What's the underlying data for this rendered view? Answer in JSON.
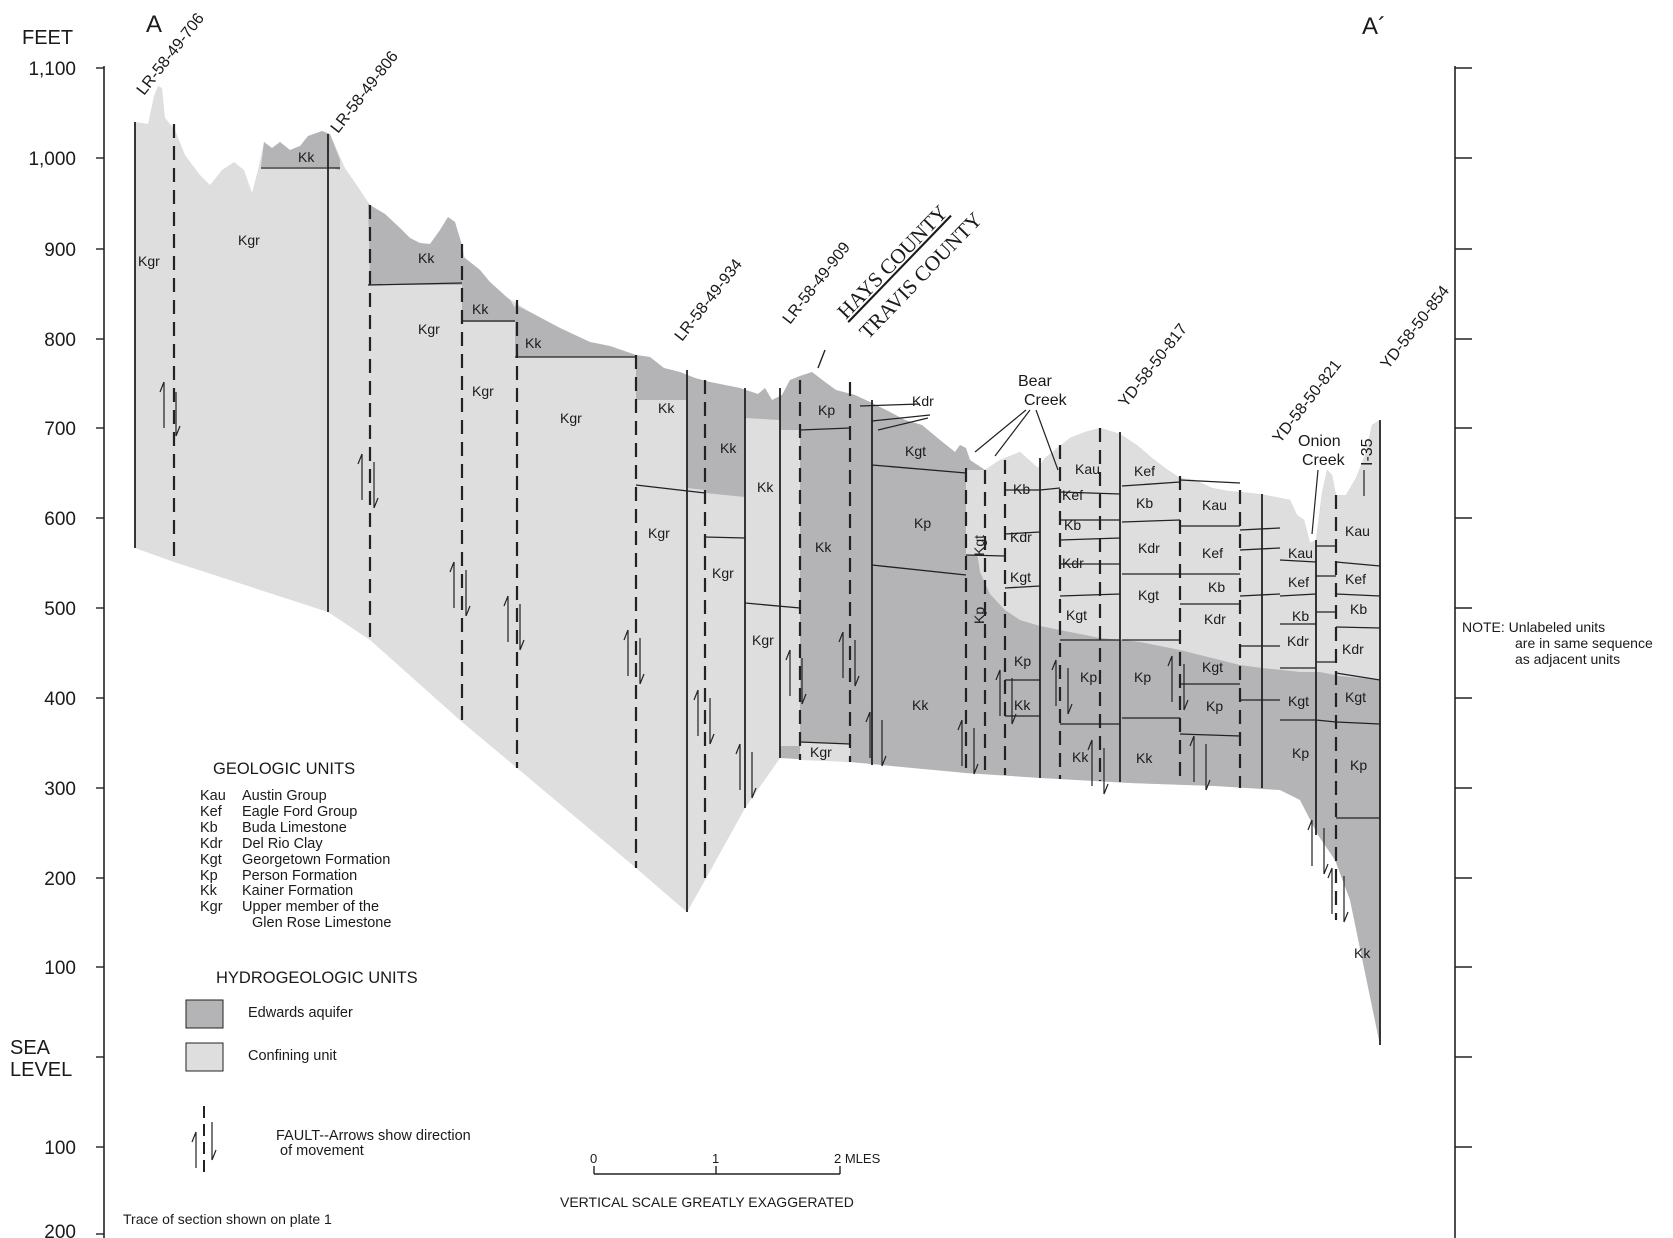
{
  "section_labels": {
    "left": "A",
    "right": "A´"
  },
  "axis": {
    "unit": "FEET",
    "ticks": [
      "1,100",
      "1,000",
      "900",
      "800",
      "700",
      "600",
      "500",
      "400",
      "300",
      "200",
      "100"
    ],
    "sea_level": [
      "SEA",
      "LEVEL"
    ],
    "below": [
      "100",
      "200"
    ]
  },
  "wells": [
    "LR-58-49-706",
    "LR-58-49-806",
    "LR-58-49-934",
    "LR-58-49-909",
    "YD-58-50-817",
    "YD-58-50-821",
    "YD-58-50-854"
  ],
  "county_line": {
    "north": "HAYS  COUNTY",
    "south": "TRAVIS COUNTY"
  },
  "features": {
    "bear_creek": [
      "Bear",
      "Creek"
    ],
    "onion_creek": [
      "Onion",
      "Creek"
    ],
    "highway": "I-35"
  },
  "unit_labels": {
    "kgr": "Kgr",
    "kk": "Kk",
    "kp": "Kp",
    "kgt": "Kgt",
    "kdr": "Kdr",
    "kb": "Kb",
    "kef": "Kef",
    "kau": "Kau"
  },
  "note": [
    "NOTE: Unlabeled units",
    "are in same sequence",
    "as adjacent units"
  ],
  "legend": {
    "geologic_title": "GEOLOGIC UNITS",
    "geologic_units": [
      {
        "code": "Kau",
        "name": "Austin Group"
      },
      {
        "code": "Kef",
        "name": "Eagle Ford Group"
      },
      {
        "code": "Kb",
        "name": "Buda Limestone"
      },
      {
        "code": "Kdr",
        "name": "Del Rio Clay"
      },
      {
        "code": "Kgt",
        "name": "Georgetown Formation"
      },
      {
        "code": "Kp",
        "name": "Person Formation"
      },
      {
        "code": "Kk",
        "name": "Kainer Formation"
      },
      {
        "code": "Kgr",
        "name": "Upper member of the"
      }
    ],
    "kgr_line2": "Glen Rose Limestone",
    "hydro_title": "HYDROGEOLOGIC UNITS",
    "hydro_units": [
      {
        "label": "Edwards aquifer",
        "color": "#b4b4b6"
      },
      {
        "label": "Confining unit",
        "color": "#dededf"
      }
    ],
    "fault_text": [
      "FAULT--Arrows show direction",
      "of movement"
    ]
  },
  "scale_bar": {
    "ticks": [
      "0",
      "1",
      "2 MLES"
    ],
    "caption": "VERTICAL SCALE GREATLY EXAGGERATED"
  },
  "trace_note": "Trace of section shown on plate 1",
  "colors": {
    "aquifer": "#b4b4b6",
    "confining": "#dededf",
    "line": "#222222"
  }
}
